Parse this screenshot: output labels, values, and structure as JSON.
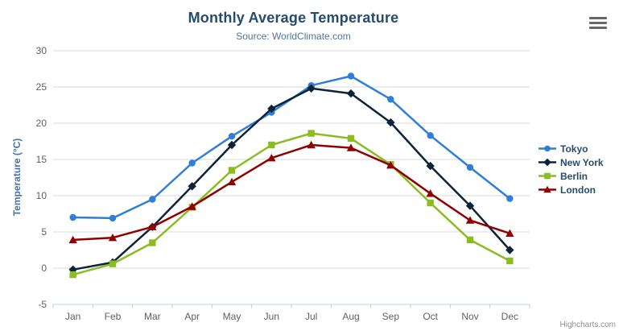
{
  "header": {
    "title": "Monthly Average Temperature",
    "subtitle": "Source: WorldClimate.com"
  },
  "credits": "Highcharts.com",
  "chart_data": {
    "type": "line",
    "title": "Monthly Average Temperature",
    "subtitle": "Source: WorldClimate.com",
    "categories": [
      "Jan",
      "Feb",
      "Mar",
      "Apr",
      "May",
      "Jun",
      "Jul",
      "Aug",
      "Sep",
      "Oct",
      "Nov",
      "Dec"
    ],
    "series": [
      {
        "name": "Tokyo",
        "color": "#2f7ed8",
        "marker": "circle",
        "values": [
          7.0,
          6.9,
          9.5,
          14.5,
          18.2,
          21.5,
          25.2,
          26.5,
          23.3,
          18.3,
          13.9,
          9.6
        ]
      },
      {
        "name": "New York",
        "color": "#0d233a",
        "marker": "diamond",
        "values": [
          -0.2,
          0.8,
          5.7,
          11.3,
          17.0,
          22.0,
          24.8,
          24.1,
          20.1,
          14.1,
          8.6,
          2.5
        ]
      },
      {
        "name": "Berlin",
        "color": "#8bbc21",
        "marker": "square",
        "values": [
          -0.9,
          0.6,
          3.5,
          8.4,
          13.5,
          17.0,
          18.6,
          17.9,
          14.3,
          9.0,
          3.9,
          1.0
        ]
      },
      {
        "name": "London",
        "color": "#910000",
        "marker": "triangle",
        "values": [
          3.9,
          4.2,
          5.7,
          8.5,
          11.9,
          15.2,
          17.0,
          16.6,
          14.2,
          10.3,
          6.6,
          4.8
        ]
      }
    ],
    "xlabel": "",
    "ylabel": "Temperature (°C)",
    "ylim": [
      -5,
      30
    ],
    "ytick_step": 5,
    "grid": true,
    "legend_position": "right"
  },
  "styles": {
    "grid_color": "#d8d8d8",
    "axis_line_color": "#c0d0e0",
    "axis_label_color": "#606060",
    "title_color": "#274b6d",
    "subtitle_color": "#4d759e",
    "axis_title_color": "#4572a7",
    "legend_text_color": "#274b6d",
    "credits_color": "#909090"
  }
}
